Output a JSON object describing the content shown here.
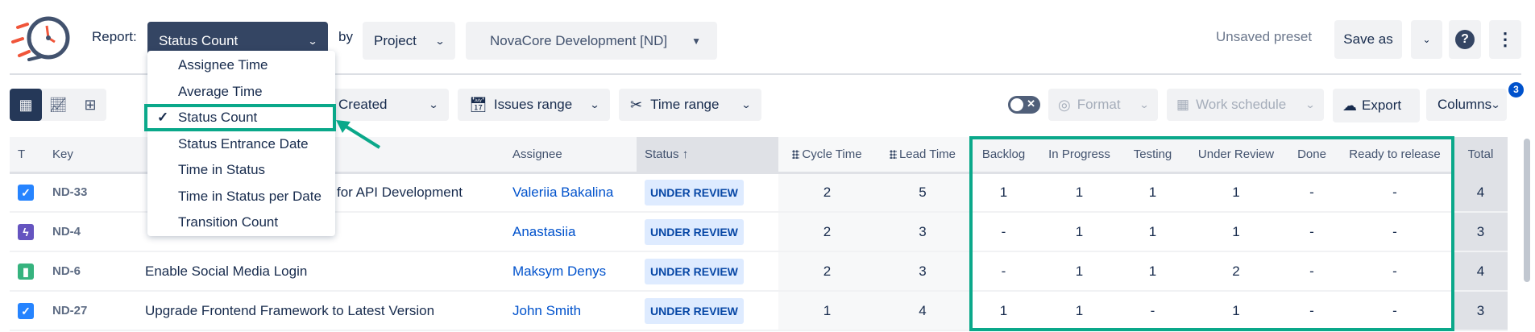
{
  "header": {
    "report_label": "Report:",
    "report_value": "Status Count",
    "by_label": "by",
    "group_value": "Project",
    "project_value": "NovaCore Development [ND]",
    "preset_status": "Unsaved preset",
    "save_as": "Save as"
  },
  "report_menu": {
    "items": [
      "Assignee Time",
      "Average Time",
      "Status Count",
      "Status Entrance Date",
      "Time in Status",
      "Time in Status per Date",
      "Transition Count"
    ],
    "selected": "Status Count"
  },
  "toolbar": {
    "date_field": "Created",
    "issues_range": "Issues range",
    "time_range": "Time range",
    "format": "Format",
    "work_schedule": "Work schedule",
    "export": "Export",
    "columns": "Columns",
    "columns_badge": "3"
  },
  "table": {
    "headers": {
      "type": "T",
      "key": "Key",
      "summary": "",
      "assignee": "Assignee",
      "status": "Status",
      "status_sort": "↑",
      "cycle": "Cycle Time",
      "lead": "Lead Time",
      "backlog": "Backlog",
      "in_progress": "In Progress",
      "testing": "Testing",
      "under_review": "Under Review",
      "done": "Done",
      "ready": "Ready to release",
      "total": "Total"
    },
    "rows": [
      {
        "type": "task",
        "key": "ND-33",
        "summary": "for API Development",
        "assignee": "Valeriia Bakalina",
        "status": "UNDER REVIEW",
        "cycle": "2",
        "lead": "5",
        "backlog": "1",
        "in_progress": "1",
        "testing": "1",
        "under_review": "1",
        "done": "-",
        "ready": "-",
        "total": "4"
      },
      {
        "type": "epic",
        "key": "ND-4",
        "summary": "",
        "assignee": "Anastasiia",
        "status": "UNDER REVIEW",
        "cycle": "2",
        "lead": "3",
        "backlog": "-",
        "in_progress": "1",
        "testing": "1",
        "under_review": "1",
        "done": "-",
        "ready": "-",
        "total": "3"
      },
      {
        "type": "story",
        "key": "ND-6",
        "summary": "Enable Social Media Login",
        "assignee": "Maksym Denys",
        "status": "UNDER REVIEW",
        "cycle": "2",
        "lead": "3",
        "backlog": "-",
        "in_progress": "1",
        "testing": "1",
        "under_review": "2",
        "done": "-",
        "ready": "-",
        "total": "4"
      },
      {
        "type": "task",
        "key": "ND-27",
        "summary": "Upgrade Frontend Framework to Latest Version",
        "assignee": "John Smith",
        "status": "UNDER REVIEW",
        "cycle": "1",
        "lead": "4",
        "backlog": "1",
        "in_progress": "1",
        "testing": "-",
        "under_review": "1",
        "done": "-",
        "ready": "-",
        "total": "3"
      }
    ]
  },
  "colors": {
    "accent_navy": "#344563",
    "highlight_green": "#0aa88a",
    "task": "#2684ff",
    "epic": "#6554c0",
    "story": "#36b37e",
    "link": "#0052cc"
  }
}
